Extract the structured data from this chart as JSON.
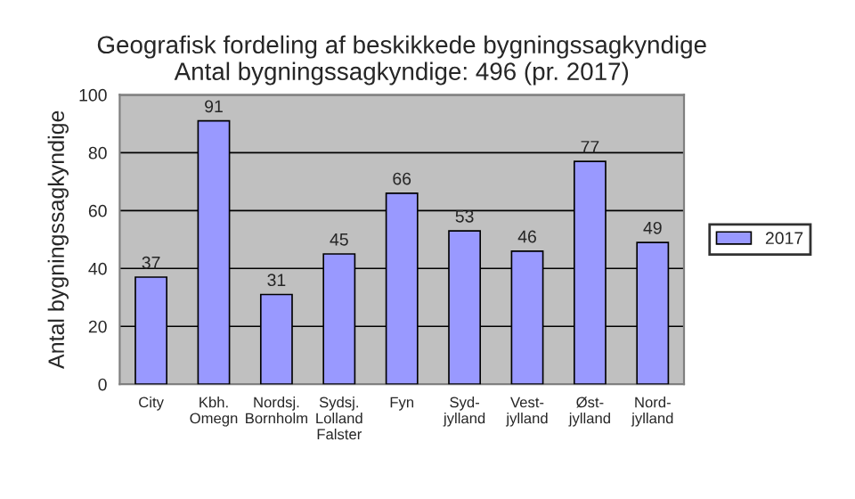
{
  "chart_data": {
    "type": "bar",
    "title": "Geografisk fordeling af beskikkede bygningssagkyndige\nAntal bygningssagkyndige: 496 (pr. 2017)",
    "ylabel": "Antal bygningssagkyndige",
    "categories": [
      "City",
      "Kbh.\nOmegn",
      "Nordsj.\nBornholm",
      "Sydsj.\nLolland\nFalster",
      "Fyn",
      "Syd-\njylland",
      "Vest-\njylland",
      "Øst-\njylland",
      "Nord-\njylland"
    ],
    "series": [
      {
        "name": "2017",
        "color": "#9999ff",
        "values": [
          37,
          91,
          31,
          45,
          66,
          53,
          46,
          77,
          49
        ]
      }
    ],
    "ylim": [
      0,
      100
    ],
    "yticks": [
      0,
      20,
      40,
      60,
      80,
      100
    ],
    "grid": "y",
    "legend": "right",
    "data_labels": true
  }
}
